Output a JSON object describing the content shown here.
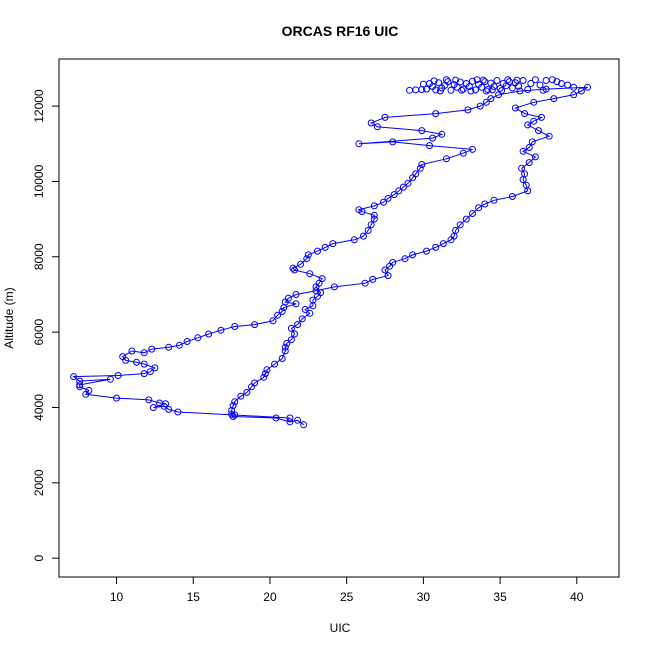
{
  "chart_data": {
    "type": "scatter",
    "title": "ORCAS RF16 UIC",
    "xlabel": "UIC",
    "ylabel": "Altitude (m)",
    "xlim": [
      6.25,
      42.75
    ],
    "ylim": [
      -500,
      13250
    ],
    "xticks": [
      10,
      15,
      20,
      25,
      30,
      35,
      40
    ],
    "yticks": [
      0,
      2000,
      4000,
      6000,
      8000,
      10000,
      12000
    ],
    "grid": false,
    "series": [
      {
        "color": "#0000ff",
        "marker": "open-circle",
        "connected": true,
        "points": [
          [
            22.2,
            3540
          ],
          [
            21.8,
            3660
          ],
          [
            21.3,
            3620
          ],
          [
            20.4,
            3720
          ],
          [
            17.6,
            3760
          ],
          [
            17.5,
            3820
          ],
          [
            17.5,
            3920
          ],
          [
            17.6,
            4050
          ],
          [
            17.7,
            4150
          ],
          [
            18.1,
            4300
          ],
          [
            18.5,
            4400
          ],
          [
            18.8,
            4550
          ],
          [
            19.0,
            4650
          ],
          [
            19.6,
            4800
          ],
          [
            19.7,
            4900
          ],
          [
            19.8,
            5000
          ],
          [
            20.3,
            5150
          ],
          [
            20.8,
            5300
          ],
          [
            21.0,
            5500
          ],
          [
            21.0,
            5600
          ],
          [
            21.1,
            5700
          ],
          [
            21.4,
            5800
          ],
          [
            21.6,
            5950
          ],
          [
            21.4,
            6100
          ],
          [
            21.8,
            6200
          ],
          [
            22.1,
            6350
          ],
          [
            22.6,
            6500
          ],
          [
            22.3,
            6600
          ],
          [
            22.8,
            6700
          ],
          [
            22.8,
            6850
          ],
          [
            23.1,
            6950
          ],
          [
            23.3,
            7050
          ],
          [
            23.0,
            7200
          ],
          [
            23.2,
            7300
          ],
          [
            23.4,
            7420
          ],
          [
            22.6,
            7550
          ],
          [
            21.6,
            7650
          ],
          [
            21.5,
            7700
          ],
          [
            22.0,
            7800
          ],
          [
            22.4,
            7950
          ],
          [
            22.5,
            8050
          ],
          [
            23.1,
            8150
          ],
          [
            23.6,
            8250
          ],
          [
            24.1,
            8350
          ],
          [
            25.5,
            8450
          ],
          [
            26.1,
            8550
          ],
          [
            26.4,
            8700
          ],
          [
            26.6,
            8850
          ],
          [
            26.8,
            9000
          ],
          [
            26.8,
            9100
          ],
          [
            26.0,
            9200
          ],
          [
            25.8,
            9250
          ],
          [
            26.8,
            9350
          ],
          [
            27.4,
            9450
          ],
          [
            27.7,
            9550
          ],
          [
            28.1,
            9650
          ],
          [
            28.4,
            9750
          ],
          [
            28.7,
            9850
          ],
          [
            29.0,
            9950
          ],
          [
            29.3,
            10100
          ],
          [
            29.5,
            10200
          ],
          [
            29.8,
            10350
          ],
          [
            29.9,
            10450
          ],
          [
            31.5,
            10600
          ],
          [
            32.6,
            10750
          ],
          [
            33.2,
            10850
          ],
          [
            30.4,
            10950
          ],
          [
            28.0,
            11050
          ],
          [
            25.8,
            11000
          ],
          [
            30.6,
            11150
          ],
          [
            31.2,
            11250
          ],
          [
            29.9,
            11350
          ],
          [
            27.0,
            11450
          ],
          [
            26.6,
            11550
          ],
          [
            27.5,
            11700
          ],
          [
            30.8,
            11800
          ],
          [
            32.9,
            11900
          ],
          [
            33.7,
            12000
          ],
          [
            34.1,
            12100
          ],
          [
            34.4,
            12200
          ],
          [
            34.9,
            12300
          ],
          [
            36.3,
            12400
          ],
          [
            38.0,
            12450
          ],
          [
            40.7,
            12500
          ],
          [
            40.3,
            12400
          ],
          [
            39.8,
            12300
          ],
          [
            38.5,
            12200
          ],
          [
            37.2,
            12100
          ],
          [
            36.0,
            11950
          ],
          [
            36.6,
            11800
          ],
          [
            37.7,
            11700
          ],
          [
            37.2,
            11600
          ],
          [
            36.8,
            11500
          ],
          [
            37.5,
            11350
          ],
          [
            38.2,
            11200
          ],
          [
            37.1,
            11050
          ],
          [
            36.9,
            10900
          ],
          [
            36.5,
            10800
          ],
          [
            37.3,
            10650
          ],
          [
            36.9,
            10500
          ],
          [
            36.4,
            10350
          ],
          [
            36.6,
            10200
          ],
          [
            36.5,
            10050
          ],
          [
            36.7,
            9900
          ],
          [
            36.8,
            9750
          ],
          [
            35.8,
            9600
          ],
          [
            34.6,
            9500
          ],
          [
            34.0,
            9400
          ],
          [
            33.6,
            9300
          ],
          [
            33.2,
            9150
          ],
          [
            32.8,
            9000
          ],
          [
            32.4,
            8850
          ],
          [
            32.1,
            8700
          ],
          [
            32.0,
            8550
          ],
          [
            31.8,
            8450
          ],
          [
            31.3,
            8350
          ],
          [
            30.8,
            8250
          ],
          [
            30.2,
            8150
          ],
          [
            29.3,
            8050
          ],
          [
            28.8,
            7950
          ],
          [
            28.0,
            7850
          ],
          [
            27.8,
            7750
          ],
          [
            27.5,
            7650
          ],
          [
            27.7,
            7500
          ],
          [
            26.7,
            7400
          ],
          [
            26.2,
            7300
          ],
          [
            24.2,
            7200
          ],
          [
            23.0,
            7100
          ],
          [
            21.7,
            7000
          ],
          [
            21.2,
            6900
          ],
          [
            21.0,
            6800
          ],
          [
            21.7,
            6750
          ],
          [
            20.9,
            6650
          ],
          [
            20.8,
            6550
          ],
          [
            20.5,
            6450
          ],
          [
            20.2,
            6300
          ],
          [
            19.0,
            6200
          ],
          [
            17.7,
            6150
          ],
          [
            16.8,
            6050
          ],
          [
            16.0,
            5950
          ],
          [
            15.3,
            5850
          ],
          [
            14.6,
            5750
          ],
          [
            14.1,
            5650
          ],
          [
            13.4,
            5600
          ],
          [
            12.3,
            5550
          ],
          [
            11.8,
            5450
          ],
          [
            11.0,
            5500
          ],
          [
            10.4,
            5350
          ],
          [
            10.6,
            5250
          ],
          [
            11.3,
            5200
          ],
          [
            11.8,
            5150
          ],
          [
            12.5,
            5050
          ],
          [
            12.2,
            4950
          ],
          [
            11.8,
            4900
          ],
          [
            10.1,
            4850
          ],
          [
            7.2,
            4820
          ],
          [
            7.6,
            4700
          ],
          [
            9.6,
            4750
          ],
          [
            7.6,
            4600
          ],
          [
            7.6,
            4550
          ],
          [
            8.2,
            4450
          ],
          [
            8.0,
            4350
          ],
          [
            10.0,
            4250
          ],
          [
            12.1,
            4200
          ],
          [
            12.8,
            4120
          ],
          [
            13.2,
            4100
          ],
          [
            12.4,
            4000
          ],
          [
            13.1,
            4030
          ],
          [
            13.4,
            3950
          ],
          [
            14.0,
            3880
          ],
          [
            17.7,
            3800
          ],
          [
            21.3,
            3720
          ]
        ],
        "cluster": [
          [
            29.1,
            12420
          ],
          [
            29.5,
            12430
          ],
          [
            29.9,
            12440
          ],
          [
            30.2,
            12450
          ],
          [
            30.4,
            12600
          ],
          [
            30.6,
            12520
          ],
          [
            30.8,
            12430
          ],
          [
            31.0,
            12620
          ],
          [
            31.2,
            12480
          ],
          [
            31.4,
            12550
          ],
          [
            31.6,
            12650
          ],
          [
            31.8,
            12420
          ],
          [
            32.0,
            12570
          ],
          [
            32.2,
            12500
          ],
          [
            32.4,
            12640
          ],
          [
            32.6,
            12450
          ],
          [
            32.8,
            12600
          ],
          [
            33.0,
            12520
          ],
          [
            33.2,
            12660
          ],
          [
            33.4,
            12430
          ],
          [
            33.6,
            12580
          ],
          [
            33.8,
            12500
          ],
          [
            34.0,
            12650
          ],
          [
            34.2,
            12440
          ],
          [
            34.4,
            12610
          ],
          [
            34.6,
            12520
          ],
          [
            34.8,
            12680
          ],
          [
            35.0,
            12470
          ],
          [
            35.2,
            12600
          ],
          [
            35.4,
            12540
          ],
          [
            35.6,
            12650
          ],
          [
            35.8,
            12480
          ],
          [
            36.0,
            12620
          ],
          [
            36.2,
            12530
          ],
          [
            36.5,
            12680
          ],
          [
            36.8,
            12440
          ],
          [
            37.0,
            12600
          ],
          [
            37.3,
            12700
          ],
          [
            37.6,
            12560
          ],
          [
            38.0,
            12680
          ],
          [
            38.4,
            12700
          ],
          [
            38.7,
            12650
          ],
          [
            39.0,
            12600
          ],
          [
            39.4,
            12560
          ],
          [
            39.8,
            12500
          ],
          [
            30.0,
            12580
          ],
          [
            31.5,
            12700
          ],
          [
            32.5,
            12420
          ],
          [
            33.5,
            12700
          ],
          [
            34.5,
            12430
          ],
          [
            35.5,
            12700
          ],
          [
            31.1,
            12400
          ],
          [
            33.1,
            12400
          ],
          [
            35.1,
            12410
          ],
          [
            32.1,
            12690
          ],
          [
            34.1,
            12400
          ],
          [
            36.1,
            12690
          ],
          [
            30.7,
            12670
          ],
          [
            33.9,
            12690
          ],
          [
            37.8,
            12420
          ]
        ]
      }
    ]
  }
}
